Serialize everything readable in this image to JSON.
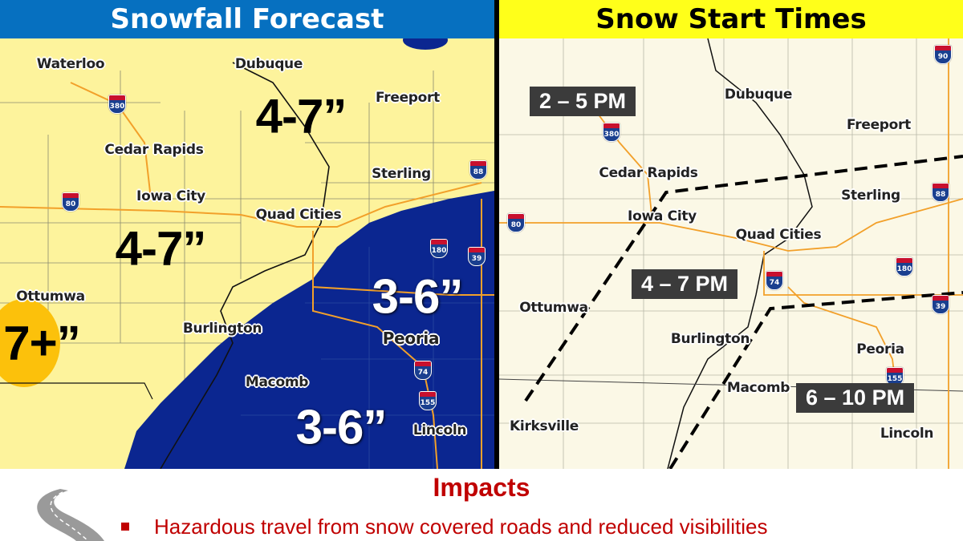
{
  "left": {
    "title": "Snowfall Forecast",
    "cities": [
      "Waterloo",
      "Dubuque",
      "Freeport",
      "Cedar Rapids",
      "Sterling",
      "Iowa City",
      "Quad Cities",
      "Ottumwa",
      "Burlington",
      "Peoria",
      "Macomb",
      "Lincoln"
    ],
    "shields": [
      "380",
      "80",
      "88",
      "180",
      "39",
      "74",
      "155"
    ],
    "amounts": [
      "4-7”",
      "4-7”",
      "7+”",
      "3-6”",
      "3-6”"
    ],
    "colors": {
      "light": "#fdf39c",
      "moderate": "#0b2690",
      "heavy": "#fcc10b"
    }
  },
  "right": {
    "title": "Snow Start Times",
    "cities": [
      "Dubuque",
      "Freeport",
      "Cedar Rapids",
      "Sterling",
      "Iowa City",
      "Quad Cities",
      "Ottumwa",
      "Burlington",
      "Peoria",
      "Macomb",
      "Kirksville",
      "Lincoln"
    ],
    "shields": [
      "90",
      "380",
      "88",
      "80",
      "74",
      "180",
      "39",
      "155"
    ],
    "times": [
      "2 – 5 PM",
      "4 – 7 PM",
      "6 – 10 PM"
    ]
  },
  "impacts": {
    "title": "Impacts",
    "items": [
      "Hazardous travel from snow covered roads and reduced visibilities"
    ],
    "icon": "road-icon"
  }
}
